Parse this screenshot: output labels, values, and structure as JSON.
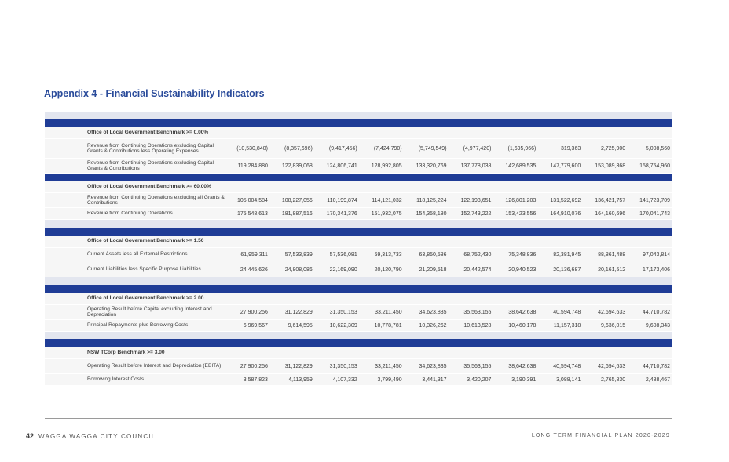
{
  "title": "Appendix 4 - Financial Sustainability Indicators",
  "sections": [
    {
      "benchmark": "Office of Local Government Benchmark >= 0.00%",
      "rows": [
        {
          "label": "Revenue from Continuing Operations excluding Capital Grants & Contributions less Operating Expenses",
          "values": [
            "(10,530,840)",
            "(8,357,696)",
            "(9,417,456)",
            "(7,424,790)",
            "(5,749,549)",
            "(4,977,420)",
            "(1,695,966)",
            "319,363",
            "2,725,900",
            "5,008,560"
          ]
        },
        {
          "label": "Revenue from Continuing Operations excluding Capital Grants & Contributions",
          "values": [
            "119,284,880",
            "122,839,068",
            "124,806,741",
            "128,992,805",
            "133,320,769",
            "137,778,038",
            "142,689,535",
            "147,779,600",
            "153,089,368",
            "158,754,960"
          ]
        }
      ]
    },
    {
      "benchmark": "Office of Local Government Benchmark >= 60.00%",
      "rows": [
        {
          "label": "Revenue from Continuing Operations excluding all Grants & Contributions",
          "values": [
            "105,004,584",
            "108,227,056",
            "110,199,874",
            "114,121,032",
            "118,125,224",
            "122,193,651",
            "126,801,203",
            "131,522,692",
            "136,421,757",
            "141,723,709"
          ]
        },
        {
          "label": "Revenue from Continuing Operations",
          "values": [
            "175,548,613",
            "181,887,516",
            "170,341,376",
            "151,932,075",
            "154,358,180",
            "152,743,222",
            "153,423,556",
            "164,910,076",
            "164,160,696",
            "170,041,743"
          ]
        }
      ]
    },
    {
      "benchmark": "Office of Local Government Benchmark >= 1.50",
      "rows": [
        {
          "label": "Current Assets less all External Restrictions",
          "values": [
            "61,959,311",
            "57,533,839",
            "57,536,081",
            "59,313,733",
            "63,850,586",
            "68,752,430",
            "75,348,836",
            "82,381,945",
            "88,861,488",
            "97,043,814"
          ]
        },
        {
          "label": "Current Liabilities less Specific Purpose Liabilities",
          "values": [
            "24,445,626",
            "24,808,086",
            "22,169,090",
            "20,120,790",
            "21,209,518",
            "20,442,574",
            "20,940,523",
            "20,136,687",
            "20,161,512",
            "17,173,406"
          ]
        }
      ]
    },
    {
      "benchmark": "Office of Local Government Benchmark >= 2.00",
      "rows": [
        {
          "label": "Operating Result before Capital excluding Interest and Depreciation",
          "values": [
            "27,900,256",
            "31,122,829",
            "31,350,153",
            "33,211,450",
            "34,623,835",
            "35,563,155",
            "38,642,638",
            "40,594,748",
            "42,694,633",
            "44,710,782"
          ]
        },
        {
          "label": "Principal Repayments plus Borrowing Costs",
          "values": [
            "6,969,567",
            "9,614,595",
            "10,622,309",
            "10,778,781",
            "10,326,262",
            "10,613,528",
            "10,460,178",
            "11,157,318",
            "9,636,015",
            "9,608,343"
          ]
        }
      ]
    },
    {
      "benchmark": "NSW TCorp Benchmark >= 3.00",
      "rows": [
        {
          "label": "Operating Result before Interest and Depreciation (EBITA)",
          "values": [
            "27,900,256",
            "31,122,829",
            "31,350,153",
            "33,211,450",
            "34,623,835",
            "35,563,155",
            "38,642,638",
            "40,594,748",
            "42,694,633",
            "44,710,782"
          ]
        },
        {
          "label": "Borrowing Interest Costs",
          "values": [
            "3,587,823",
            "4,113,959",
            "4,107,332",
            "3,799,490",
            "3,441,317",
            "3,420,207",
            "3,190,391",
            "3,088,141",
            "2,765,830",
            "2,488,467"
          ]
        }
      ]
    }
  ],
  "footer": {
    "page_number": "42",
    "organisation": "WAGGA WAGGA CITY COUNCIL",
    "document": "LONG TERM FINANCIAL PLAN 2020-2029"
  }
}
